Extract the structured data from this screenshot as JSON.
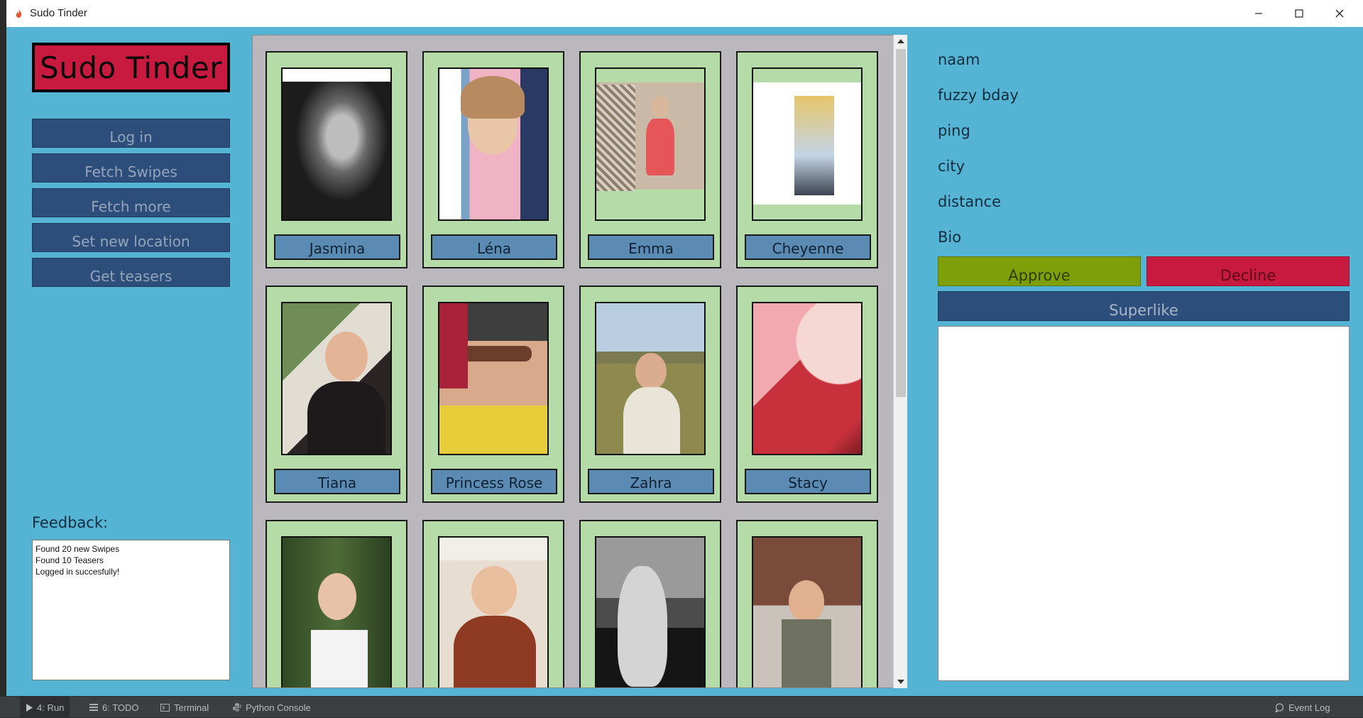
{
  "window": {
    "title": "Sudo Tinder"
  },
  "sidebar": {
    "logo_text": "Sudo Tinder",
    "buttons": [
      {
        "label": "Log in"
      },
      {
        "label": "Fetch Swipes"
      },
      {
        "label": "Fetch more"
      },
      {
        "label": "Set new location"
      },
      {
        "label": "Get teasers"
      }
    ],
    "feedback_label": "Feedback:",
    "feedback_lines": [
      "Found 20 new Swipes",
      "Found 10 Teasers",
      "Logged in succesfully!"
    ]
  },
  "profiles": [
    {
      "name": "Jasmina"
    },
    {
      "name": "Léna"
    },
    {
      "name": "Emma"
    },
    {
      "name": "Cheyenne"
    },
    {
      "name": "Tiana"
    },
    {
      "name": "Princess Rose"
    },
    {
      "name": "Zahra"
    },
    {
      "name": "Stacy"
    },
    {
      "name": ""
    },
    {
      "name": ""
    },
    {
      "name": ""
    },
    {
      "name": ""
    }
  ],
  "details": {
    "name_label": "naam",
    "bday_label": "fuzzy bday",
    "ping_label": "ping",
    "city_label": "city",
    "distance_label": "distance",
    "bio_label": "Bio",
    "approve_label": "Approve",
    "decline_label": "Decline",
    "superlike_label": "Superlike",
    "bio_text": ""
  },
  "ide_toolbar": {
    "tabs": [
      {
        "label": "4: Run"
      },
      {
        "label": "6: TODO"
      },
      {
        "label": "Terminal"
      },
      {
        "label": "Python Console"
      }
    ],
    "event_log": "Event Log"
  },
  "colors": {
    "window_bg": "#55b4d3",
    "logo_bg": "#c8193f",
    "nav_button": "#2d4e7a",
    "card_bg": "#b5dca8",
    "name_button": "#5b8ab2",
    "approve": "#7e9f07",
    "decline": "#c8193f",
    "superlike": "#2d4e7a"
  }
}
